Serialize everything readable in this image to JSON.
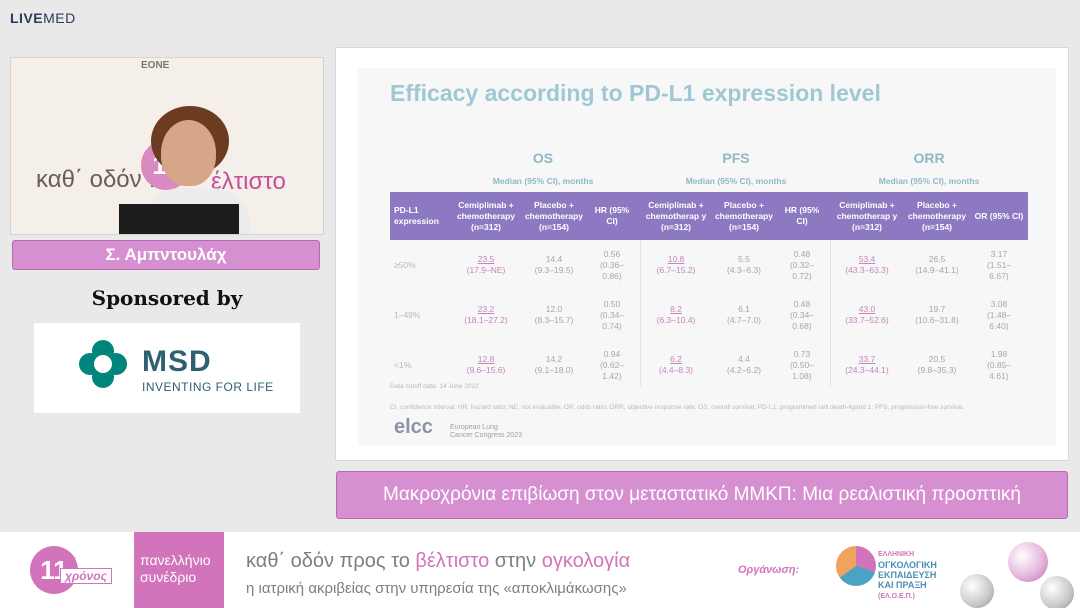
{
  "brand": {
    "live": "LIVE",
    "med": "MED"
  },
  "video": {
    "bg_text_left": "καθ΄ οδόν π",
    "bg_text_right": "έλτιστο",
    "bg_number": "11",
    "logo_top": "EONE"
  },
  "speaker": {
    "name": "Σ. Αμπντουλάχ"
  },
  "sponsor": {
    "heading": "Sponsored by",
    "company": "MSD",
    "tagline": "INVENTING FOR LIFE"
  },
  "slide": {
    "title": "Efficacy according to PD-L1 expression level",
    "sections": [
      "OS",
      "PFS",
      "ORR"
    ],
    "median_label": "Median (95% CI), months",
    "headers": [
      "PD-L1 expression",
      "Cemiplimab + chemotherapy (n=312)",
      "Placebo + chemotherapy (n=154)",
      "HR (95% CI)",
      "Cemiplimab + chemotherap y (n=312)",
      "Placebo + chemotherapy (n=154)",
      "HR (95% CI)",
      "Cemiplimab + chemotherap y (n=312)",
      "Placebo + chemotherapy (n=154)",
      "OR (95% CI)"
    ],
    "rows": [
      {
        "label": "≥50%",
        "cells": [
          [
            "23.5",
            "(17.9–NE)"
          ],
          [
            "14.4",
            "(9.3–19.5)"
          ],
          [
            "0.56",
            "(0.36–",
            "0.86)"
          ],
          [
            "10.8",
            "(6.7–15.2)"
          ],
          [
            "5.5",
            "(4.3–6.3)"
          ],
          [
            "0.48",
            "(0.32–",
            "0.72)"
          ],
          [
            "53.4",
            "(43.3–63.3)"
          ],
          [
            "26.5",
            "(14.9–41.1)"
          ],
          [
            "3.17",
            "(1.51–",
            "6.67)"
          ]
        ]
      },
      {
        "label": "1–49%",
        "cells": [
          [
            "23.2",
            "(18.1–27.2)"
          ],
          [
            "12.0",
            "(8.3–15.7)"
          ],
          [
            "0.50",
            "(0.34–",
            "0.74)"
          ],
          [
            "8.2",
            "(6.3–10.4)"
          ],
          [
            "6.1",
            "(4.7–7.0)"
          ],
          [
            "0.48",
            "(0.34–",
            "0.68)"
          ],
          [
            "43.0",
            "(33.7–52.6)"
          ],
          [
            "19.7",
            "(10.6–31.8)"
          ],
          [
            "3.08",
            "(1.48–",
            "6.40)"
          ]
        ]
      },
      {
        "label": "<1%",
        "cells": [
          [
            "12.8",
            "(9.6–15.6)"
          ],
          [
            "14.2",
            "(9.1–18.0)"
          ],
          [
            "0.94",
            "(0.62–",
            "1.42)"
          ],
          [
            "6.2",
            "(4.4–8.3)"
          ],
          [
            "4.4",
            "(4.2–6.2)"
          ],
          [
            "0.73",
            "(0.50–",
            "1.08)"
          ],
          [
            "33.7",
            "(24.3–44.1)"
          ],
          [
            "20.5",
            "(9.8–35.3)"
          ],
          [
            "1.98",
            "(0.85–",
            "4.61)"
          ]
        ]
      }
    ],
    "cutoff": "Data cutoff date: 14 June 2022",
    "footnote": "CI, confidence interval; HR, hazard ratio; NE, not evaluable; OR, odds ratio; ORR, objective response rate; OS, overall survival; PD-L1, programmed cell death-ligand 1; PFS, progression-free survival.",
    "elcc": "elcc",
    "elcc_sub1": "European Lung",
    "elcc_sub2": "Cancer Congress 2023"
  },
  "caption": "Μακροχρόνια επιβίωση στον μεταστατικό ΜΜΚΠ: Μια ρεαλιστική προοπτική",
  "footer": {
    "number": "11",
    "sup": "ος",
    "xronos": "χρόνος",
    "pink_line1": "πανελλήνιο",
    "pink_line2": "συνέδριο",
    "tag_a": "καθ΄ οδόν προς το ",
    "tag_b": "βέλτιστο",
    "tag_c": " στην ",
    "tag_d": "ογκολογία",
    "tag_line2": "η ιατρική ακριβείας στην υπηρεσία της «αποκλιμάκωσης»",
    "org_label": "Οργάνωση:",
    "org_line1": "ΕΛΛΗΝΙΚΗ",
    "org_line2": "ΟΓΚΟΛΟΓΙΚΗ",
    "org_line3": "ΕΚΠΑΙΔΕΥΣΗ",
    "org_line4": "ΚΑΙ ΠΡΑΞΗ",
    "org_line5": "(ΕΛ.Ο.Ε.Π.)"
  }
}
